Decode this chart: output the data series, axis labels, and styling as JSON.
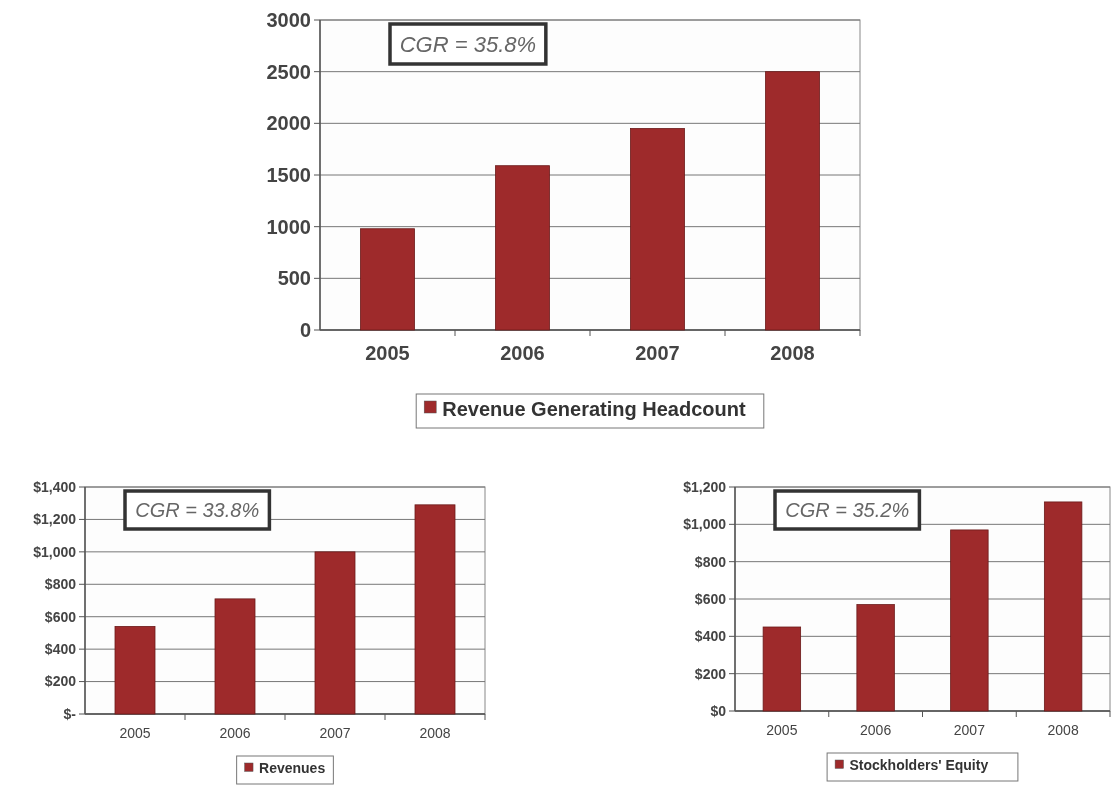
{
  "chart_data": [
    {
      "type": "bar",
      "categories": [
        "2005",
        "2006",
        "2007",
        "2008"
      ],
      "series": [
        {
          "name": "Revenue Generating Headcount",
          "color": "#9e2a2b",
          "values": [
            980,
            1590,
            1950,
            2500
          ]
        }
      ],
      "ylim": [
        0,
        3000
      ],
      "yticks": [
        0,
        500,
        1000,
        1500,
        2000,
        2500,
        3000
      ],
      "grid": "y",
      "legend": "bottom",
      "annotations": [
        "CGR = 35.8%"
      ]
    },
    {
      "type": "bar",
      "categories": [
        "2005",
        "2006",
        "2007",
        "2008"
      ],
      "series": [
        {
          "name": "Revenues",
          "color": "#9e2a2b",
          "values": [
            540,
            710,
            1000,
            1290
          ]
        }
      ],
      "ylim": [
        0,
        1400
      ],
      "yticks": [
        {
          "value": 0,
          "label": "$-"
        },
        {
          "value": 200,
          "label": "$200"
        },
        {
          "value": 400,
          "label": "$400"
        },
        {
          "value": 600,
          "label": "$600"
        },
        {
          "value": 800,
          "label": "$800"
        },
        {
          "value": 1000,
          "label": "$1,000"
        },
        {
          "value": 1200,
          "label": "$1,200"
        },
        {
          "value": 1400,
          "label": "$1,400"
        }
      ],
      "grid": "y",
      "legend": "bottom",
      "annotations": [
        "CGR = 33.8%"
      ]
    },
    {
      "type": "bar",
      "categories": [
        "2005",
        "2006",
        "2007",
        "2008"
      ],
      "series": [
        {
          "name": "Stockholders' Equity",
          "color": "#9e2a2b",
          "values": [
            450,
            570,
            970,
            1120
          ]
        }
      ],
      "ylim": [
        0,
        1200
      ],
      "yticks": [
        {
          "value": 0,
          "label": "$0"
        },
        {
          "value": 200,
          "label": "$200"
        },
        {
          "value": 400,
          "label": "$400"
        },
        {
          "value": 600,
          "label": "$600"
        },
        {
          "value": 800,
          "label": "$800"
        },
        {
          "value": 1000,
          "label": "$1,000"
        },
        {
          "value": 1200,
          "label": "$1,200"
        }
      ],
      "grid": "y",
      "legend": "bottom",
      "annotations": [
        "CGR = 35.2%"
      ]
    }
  ]
}
